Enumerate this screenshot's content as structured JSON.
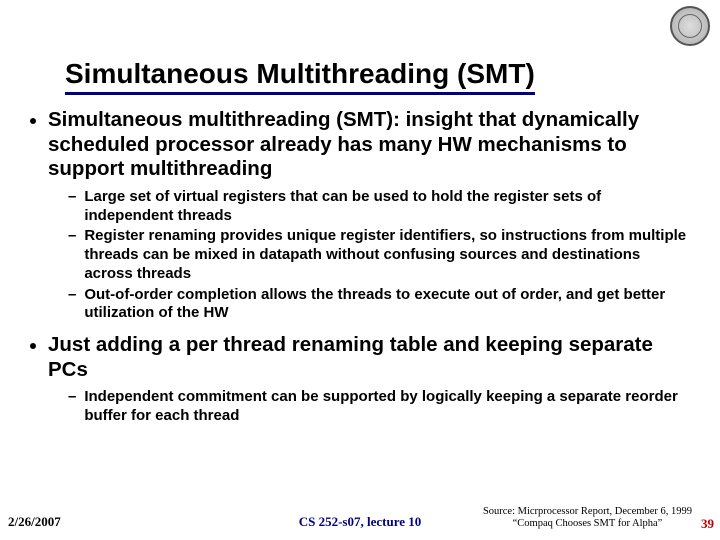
{
  "title": "Simultaneous Multithreading (SMT)",
  "bullets": {
    "b1": "Simultaneous multithreading (SMT): insight that dynamically scheduled processor already has many HW mechanisms to support multithreading",
    "b1a": "Large set of virtual registers that can be used to hold the register sets of independent threads",
    "b1b": "Register renaming provides unique register identifiers, so instructions from multiple threads can be mixed in datapath without confusing sources and destinations across threads",
    "b1c": "Out-of-order completion allows the threads to execute out of order, and get better utilization of the HW",
    "b2": "Just adding a per thread renaming table and keeping separate PCs",
    "b2a": "Independent commitment can be supported by logically keeping a separate reorder buffer for each thread"
  },
  "footer": {
    "date": "2/26/2007",
    "course": "CS 252-s07, lecture 10",
    "source_line1": "Source: Micrprocessor Report, December 6, 1999",
    "source_line2": "“Compaq Chooses SMT for Alpha”",
    "page": "39"
  }
}
